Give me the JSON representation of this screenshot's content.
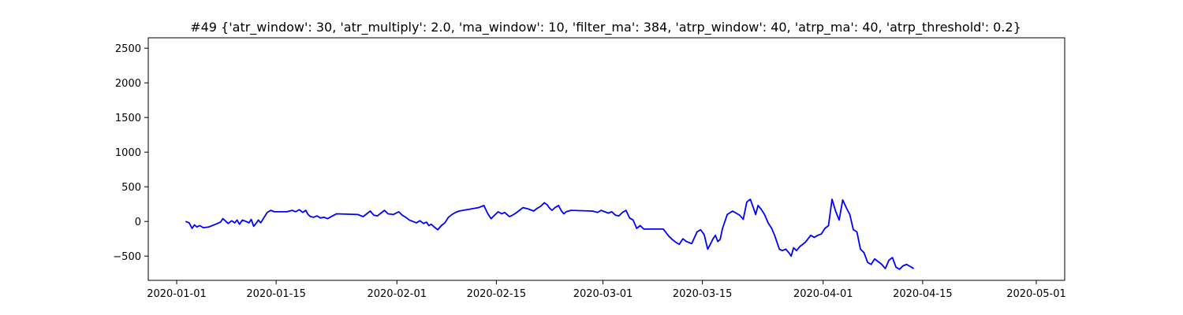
{
  "chart_data": {
    "type": "line",
    "title": "#49 {'atr_window': 30, 'atr_multiply': 2.0, 'ma_window': 10, 'filter_ma': 384, 'atrp_window': 40, 'atrp_ma': 40, 'atrp_threshold': 0.2}",
    "xlabel": "",
    "ylabel": "",
    "x_axis": "date",
    "xlim": [
      "2019-12-28",
      "2020-05-05"
    ],
    "ylim": [
      -850,
      2650
    ],
    "x_ticks": [
      "2020-01-01",
      "2020-01-15",
      "2020-02-01",
      "2020-02-15",
      "2020-03-01",
      "2020-03-15",
      "2020-04-01",
      "2020-04-15",
      "2020-05-01"
    ],
    "y_ticks": [
      -500,
      0,
      500,
      1000,
      1500,
      2000,
      2500
    ],
    "grid": false,
    "series": [
      {
        "color": "#0000ff",
        "points": [
          [
            "2020-01-02",
            0
          ],
          [
            "2020-01-02",
            -20
          ],
          [
            "2020-01-03",
            -100
          ],
          [
            "2020-01-03",
            -50
          ],
          [
            "2020-01-03",
            -80
          ],
          [
            "2020-01-04",
            -60
          ],
          [
            "2020-01-04",
            -90
          ],
          [
            "2020-01-05",
            -80
          ],
          [
            "2020-01-06",
            -40
          ],
          [
            "2020-01-07",
            -10
          ],
          [
            "2020-01-07",
            40
          ],
          [
            "2020-01-07",
            10
          ],
          [
            "2020-01-08",
            -30
          ],
          [
            "2020-01-08",
            10
          ],
          [
            "2020-01-09",
            -20
          ],
          [
            "2020-01-09",
            20
          ],
          [
            "2020-01-09",
            -40
          ],
          [
            "2020-01-10",
            20
          ],
          [
            "2020-01-10",
            0
          ],
          [
            "2020-01-11",
            -20
          ],
          [
            "2020-01-11",
            30
          ],
          [
            "2020-01-11",
            -70
          ],
          [
            "2020-01-12",
            -30
          ],
          [
            "2020-01-12",
            20
          ],
          [
            "2020-01-12",
            -20
          ],
          [
            "2020-01-13",
            50
          ],
          [
            "2020-01-13",
            130
          ],
          [
            "2020-01-14",
            160
          ],
          [
            "2020-01-14",
            140
          ],
          [
            "2020-01-16",
            140
          ],
          [
            "2020-01-17",
            160
          ],
          [
            "2020-01-17",
            140
          ],
          [
            "2020-01-18",
            170
          ],
          [
            "2020-01-18",
            130
          ],
          [
            "2020-01-19",
            160
          ],
          [
            "2020-01-19",
            100
          ],
          [
            "2020-01-19",
            70
          ],
          [
            "2020-01-20",
            60
          ],
          [
            "2020-01-20",
            80
          ],
          [
            "2020-01-21",
            50
          ],
          [
            "2020-01-21",
            60
          ],
          [
            "2020-01-22",
            40
          ],
          [
            "2020-01-22",
            70
          ],
          [
            "2020-01-23",
            110
          ],
          [
            "2020-01-26",
            100
          ],
          [
            "2020-01-27",
            70
          ],
          [
            "2020-01-27",
            110
          ],
          [
            "2020-01-28",
            150
          ],
          [
            "2020-01-28",
            90
          ],
          [
            "2020-01-29",
            80
          ],
          [
            "2020-01-29",
            120
          ],
          [
            "2020-01-30",
            160
          ],
          [
            "2020-01-30",
            110
          ],
          [
            "2020-01-31",
            100
          ],
          [
            "2020-02-01",
            140
          ],
          [
            "2020-02-01",
            90
          ],
          [
            "2020-02-02",
            60
          ],
          [
            "2020-02-02",
            20
          ],
          [
            "2020-02-03",
            0
          ],
          [
            "2020-02-03",
            -20
          ],
          [
            "2020-02-04",
            10
          ],
          [
            "2020-02-04",
            -30
          ],
          [
            "2020-02-05",
            -10
          ],
          [
            "2020-02-05",
            -60
          ],
          [
            "2020-02-05",
            -40
          ],
          [
            "2020-02-06",
            -80
          ],
          [
            "2020-02-06",
            -120
          ],
          [
            "2020-02-07",
            -60
          ],
          [
            "2020-02-07",
            -20
          ],
          [
            "2020-02-08",
            60
          ],
          [
            "2020-02-08",
            100
          ],
          [
            "2020-02-09",
            130
          ],
          [
            "2020-02-09",
            150
          ],
          [
            "2020-02-12",
            200
          ],
          [
            "2020-02-13",
            230
          ],
          [
            "2020-02-13",
            120
          ],
          [
            "2020-02-14",
            40
          ],
          [
            "2020-02-14",
            90
          ],
          [
            "2020-02-15",
            140
          ],
          [
            "2020-02-15",
            110
          ],
          [
            "2020-02-16",
            130
          ],
          [
            "2020-02-16",
            100
          ],
          [
            "2020-02-16",
            70
          ],
          [
            "2020-02-17",
            90
          ],
          [
            "2020-02-17",
            120
          ],
          [
            "2020-02-18",
            160
          ],
          [
            "2020-02-18",
            200
          ],
          [
            "2020-02-19",
            180
          ],
          [
            "2020-02-20",
            150
          ],
          [
            "2020-02-20",
            190
          ],
          [
            "2020-02-21",
            220
          ],
          [
            "2020-02-21",
            270
          ],
          [
            "2020-02-22",
            240
          ],
          [
            "2020-02-22",
            190
          ],
          [
            "2020-02-22",
            160
          ],
          [
            "2020-02-23",
            200
          ],
          [
            "2020-02-23",
            230
          ],
          [
            "2020-02-24",
            150
          ],
          [
            "2020-02-24",
            110
          ],
          [
            "2020-02-24",
            140
          ],
          [
            "2020-02-25",
            160
          ],
          [
            "2020-02-28",
            150
          ],
          [
            "2020-02-29",
            130
          ],
          [
            "2020-02-29",
            160
          ],
          [
            "2020-03-01",
            140
          ],
          [
            "2020-03-01",
            120
          ],
          [
            "2020-03-02",
            140
          ],
          [
            "2020-03-02",
            90
          ],
          [
            "2020-03-03",
            80
          ],
          [
            "2020-03-03",
            130
          ],
          [
            "2020-03-04",
            160
          ],
          [
            "2020-03-04",
            50
          ],
          [
            "2020-03-05",
            20
          ],
          [
            "2020-03-05",
            -100
          ],
          [
            "2020-03-06",
            -60
          ],
          [
            "2020-03-06",
            -110
          ],
          [
            "2020-03-09",
            -110
          ],
          [
            "2020-03-10",
            -210
          ],
          [
            "2020-03-10",
            -260
          ],
          [
            "2020-03-11",
            -300
          ],
          [
            "2020-03-11",
            -330
          ],
          [
            "2020-03-12",
            -250
          ],
          [
            "2020-03-12",
            -290
          ],
          [
            "2020-03-13",
            -320
          ],
          [
            "2020-03-14",
            -150
          ],
          [
            "2020-03-14",
            -120
          ],
          [
            "2020-03-15",
            -190
          ],
          [
            "2020-03-15",
            -400
          ],
          [
            "2020-03-16",
            -320
          ],
          [
            "2020-03-16",
            -250
          ],
          [
            "2020-03-16",
            -200
          ],
          [
            "2020-03-17",
            -290
          ],
          [
            "2020-03-17",
            -260
          ],
          [
            "2020-03-17",
            -100
          ],
          [
            "2020-03-18",
            100
          ],
          [
            "2020-03-19",
            150
          ],
          [
            "2020-03-19",
            120
          ],
          [
            "2020-03-20",
            90
          ],
          [
            "2020-03-20",
            30
          ],
          [
            "2020-03-21",
            280
          ],
          [
            "2020-03-21",
            320
          ],
          [
            "2020-03-22",
            200
          ],
          [
            "2020-03-22",
            100
          ],
          [
            "2020-03-22",
            230
          ],
          [
            "2020-03-23",
            180
          ],
          [
            "2020-03-23",
            100
          ],
          [
            "2020-03-24",
            -20
          ],
          [
            "2020-03-24",
            -100
          ],
          [
            "2020-03-25",
            -200
          ],
          [
            "2020-03-25",
            -300
          ],
          [
            "2020-03-25",
            -400
          ],
          [
            "2020-03-26",
            -420
          ],
          [
            "2020-03-26",
            -400
          ],
          [
            "2020-03-27",
            -450
          ],
          [
            "2020-03-27",
            -500
          ],
          [
            "2020-03-27",
            -380
          ],
          [
            "2020-03-28",
            -420
          ],
          [
            "2020-03-28",
            -360
          ],
          [
            "2020-03-29",
            -300
          ],
          [
            "2020-03-30",
            -200
          ],
          [
            "2020-03-30",
            -230
          ],
          [
            "2020-03-31",
            -200
          ],
          [
            "2020-03-31",
            -180
          ],
          [
            "2020-04-01",
            -100
          ],
          [
            "2020-04-01",
            -60
          ],
          [
            "2020-04-02",
            320
          ],
          [
            "2020-04-02",
            150
          ],
          [
            "2020-04-03",
            20
          ],
          [
            "2020-04-03",
            310
          ],
          [
            "2020-04-04",
            200
          ],
          [
            "2020-04-04",
            100
          ],
          [
            "2020-04-05",
            -120
          ],
          [
            "2020-04-05",
            -150
          ],
          [
            "2020-04-06",
            -400
          ],
          [
            "2020-04-06",
            -450
          ],
          [
            "2020-04-07",
            -590
          ],
          [
            "2020-04-07",
            -620
          ],
          [
            "2020-04-08",
            -540
          ],
          [
            "2020-04-08",
            -580
          ],
          [
            "2020-04-09",
            -620
          ],
          [
            "2020-04-09",
            -680
          ],
          [
            "2020-04-10",
            -560
          ],
          [
            "2020-04-10",
            -520
          ],
          [
            "2020-04-11",
            -660
          ],
          [
            "2020-04-11",
            -690
          ],
          [
            "2020-04-12",
            -640
          ],
          [
            "2020-04-12",
            -620
          ],
          [
            "2020-04-13",
            -650
          ],
          [
            "2020-04-13",
            -680
          ]
        ]
      }
    ]
  }
}
